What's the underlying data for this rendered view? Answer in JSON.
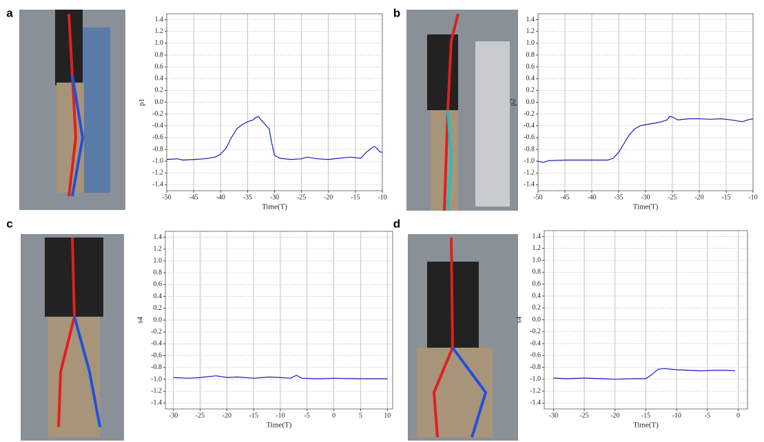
{
  "chart_data": [
    {
      "type": "line",
      "label": "a",
      "ylabel": "p1",
      "xlabel": "Time(T)",
      "color": "#1a1ab8",
      "x": [
        -50,
        -48,
        -47,
        -45,
        -43,
        -41,
        -40,
        -39,
        -38,
        -37,
        -36,
        -35,
        -34,
        -33.5,
        -33,
        -32.5,
        -32,
        -31,
        -30.5,
        -30,
        -29,
        -27,
        -25,
        -24,
        -22,
        -20,
        -18,
        -16,
        -14,
        -13,
        -12,
        -11.5,
        -11,
        -10.5,
        -10
      ],
      "values": [
        -0.97,
        -0.96,
        -0.98,
        -0.97,
        -0.96,
        -0.93,
        -0.88,
        -0.78,
        -0.6,
        -0.45,
        -0.38,
        -0.33,
        -0.3,
        -0.26,
        -0.24,
        -0.3,
        -0.35,
        -0.45,
        -0.7,
        -0.9,
        -0.95,
        -0.97,
        -0.96,
        -0.93,
        -0.96,
        -0.97,
        -0.95,
        -0.93,
        -0.95,
        -0.85,
        -0.78,
        -0.75,
        -0.78,
        -0.84,
        -0.85
      ],
      "xlim": [
        -50,
        -10
      ],
      "ylim": [
        -1.5,
        1.5
      ],
      "xticks": [
        -50,
        -45,
        -40,
        -35,
        -30,
        -25,
        -20,
        -15,
        -10
      ],
      "yticks": [
        1.4,
        1.2,
        {
          "value": 1,
          "label": "1.0"
        },
        0.8,
        0.6,
        0.4,
        0.2,
        {
          "value": 0,
          "label": "0.0"
        },
        -0.2,
        -0.4,
        -0.6,
        -0.8,
        {
          "value": -1,
          "label": "-1.0"
        },
        -1.2,
        -1.4
      ],
      "grid": true
    },
    {
      "type": "line",
      "label": "b",
      "ylabel": "p2",
      "xlabel": "Time(T)",
      "color": "#1a1ab8",
      "x": [
        -50,
        -49,
        -48,
        -45,
        -40,
        -37,
        -36,
        -35,
        -34,
        -33,
        -32,
        -31,
        -30,
        -28,
        -27,
        -26,
        -25.5,
        -25,
        -24,
        -22,
        -20,
        -18,
        -16,
        -14,
        -12,
        -11,
        -10
      ],
      "values": [
        -1.0,
        -1.02,
        -0.99,
        -0.98,
        -0.98,
        -0.98,
        -0.95,
        -0.85,
        -0.7,
        -0.55,
        -0.45,
        -0.4,
        -0.38,
        -0.35,
        -0.33,
        -0.3,
        -0.24,
        -0.25,
        -0.3,
        -0.28,
        -0.28,
        -0.29,
        -0.28,
        -0.3,
        -0.33,
        -0.3,
        -0.28
      ],
      "xlim": [
        -50,
        -10
      ],
      "ylim": [
        -1.5,
        1.5
      ],
      "xticks": [
        -50,
        -45,
        -40,
        -35,
        -30,
        -25,
        -20,
        -15,
        -10
      ],
      "yticks": [
        1.4,
        1.2,
        {
          "value": 1,
          "label": "1.0"
        },
        0.8,
        0.6,
        0.4,
        0.2,
        {
          "value": 0,
          "label": "0.0"
        },
        -0.2,
        -0.4,
        -0.6,
        -0.8,
        {
          "value": -1,
          "label": "-1.0"
        },
        -1.2,
        -1.4
      ],
      "grid": true
    },
    {
      "type": "line",
      "label": "c",
      "ylabel": "s4",
      "xlabel": "Time(T)",
      "color": "#1a1ab8",
      "x": [
        -30,
        -27,
        -25,
        -22,
        -20,
        -18,
        -15,
        -12,
        -10,
        -8,
        -7,
        -6,
        -3,
        0,
        5,
        10
      ],
      "values": [
        -0.97,
        -0.98,
        -0.97,
        -0.94,
        -0.97,
        -0.96,
        -0.98,
        -0.96,
        -0.97,
        -0.98,
        -0.93,
        -0.98,
        -0.99,
        -0.98,
        -0.99,
        -0.99
      ],
      "xlim": [
        -31.5,
        11
      ],
      "ylim": [
        -1.5,
        1.5
      ],
      "xticks": [
        -30,
        -25,
        -20,
        -15,
        -10,
        -5,
        0,
        5,
        10
      ],
      "yticks": [
        1.4,
        1.2,
        {
          "value": 1,
          "label": "1.0"
        },
        0.8,
        0.6,
        0.4,
        0.2,
        {
          "value": 0,
          "label": "0.0"
        },
        -0.2,
        -0.4,
        -0.6,
        -0.8,
        {
          "value": -1,
          "label": "-1.0"
        },
        -1.2,
        -1.4
      ],
      "grid": true
    },
    {
      "type": "line",
      "label": "d",
      "ylabel": "s4",
      "xlabel": "Time(T)",
      "color": "#1a1ab8",
      "x": [
        -30,
        -28,
        -25,
        -22,
        -20,
        -17,
        -15,
        -14,
        -13,
        -12,
        -10,
        -8,
        -6,
        -4,
        -2,
        -0.5
      ],
      "values": [
        -0.98,
        -0.99,
        -0.98,
        -0.99,
        -1.0,
        -0.99,
        -0.99,
        -0.92,
        -0.83,
        -0.82,
        -0.84,
        -0.85,
        -0.86,
        -0.85,
        -0.85,
        -0.86
      ],
      "xlim": [
        -31.5,
        1.5
      ],
      "ylim": [
        -1.5,
        1.5
      ],
      "xticks": [
        -30,
        -25,
        -20,
        -15,
        -10,
        -5,
        0
      ],
      "yticks": [
        1.4,
        1.2,
        {
          "value": 1,
          "label": "1.0"
        },
        0.8,
        0.6,
        0.4,
        0.2,
        {
          "value": 0,
          "label": "0.0"
        },
        -0.2,
        -0.4,
        -0.6,
        -0.8,
        {
          "value": -1,
          "label": "-1.0"
        },
        -1.2,
        -1.4
      ],
      "grid": true
    }
  ]
}
